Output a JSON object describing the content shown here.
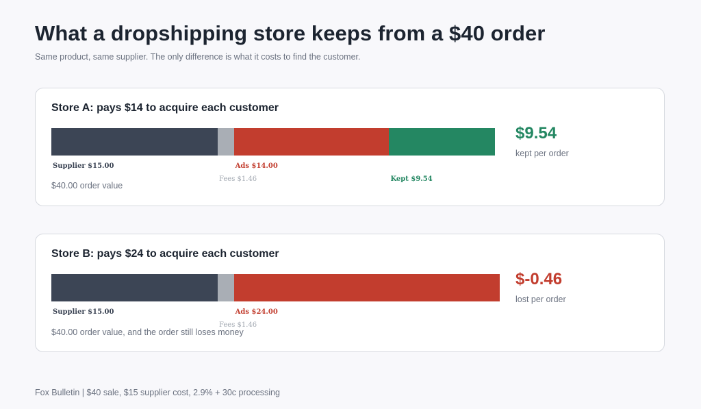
{
  "header": {
    "title": "What a dropshipping store keeps from a $40 order",
    "subtitle": "Same product, same supplier. The only difference is what it costs to find the customer."
  },
  "footer": {
    "text": "Fox Bulletin  |  $40 sale, $15 supplier cost, 2.9% + 30c processing"
  },
  "colors": {
    "supplier": "#3c4555",
    "fees": "#a9aeb5",
    "ads": "#c23d2e",
    "kept": "#248762",
    "negative": "#c23d2e",
    "positive": "#248762"
  },
  "chart_data": [
    {
      "type": "bar",
      "stacked": true,
      "orientation": "horizontal",
      "title": "Store A: pays $14 to acquire each customer",
      "order_value": 40,
      "segments": [
        {
          "key": "supplier",
          "label": "Supplier $15.00",
          "value": 15.0
        },
        {
          "key": "fees",
          "label": "Fees $1.46",
          "value": 1.46
        },
        {
          "key": "ads",
          "label": "Ads $14.00",
          "value": 14.0
        },
        {
          "key": "kept",
          "label": "Kept $9.54",
          "value": 9.54
        }
      ],
      "note": "$40.00 order value",
      "result_value": "$9.54",
      "result_caption": "kept per order",
      "result_sign": "positive"
    },
    {
      "type": "bar",
      "stacked": true,
      "orientation": "horizontal",
      "title": "Store B: pays $24 to acquire each customer",
      "order_value": 40,
      "segments": [
        {
          "key": "supplier",
          "label": "Supplier $15.00",
          "value": 15.0
        },
        {
          "key": "fees",
          "label": "Fees $1.46",
          "value": 1.46
        },
        {
          "key": "ads",
          "label": "Ads $24.00",
          "value": 24.0
        }
      ],
      "note": "$40.00 order value, and the order still loses money",
      "result_value": "$-0.46",
      "result_caption": "lost per order",
      "result_sign": "negative"
    }
  ]
}
